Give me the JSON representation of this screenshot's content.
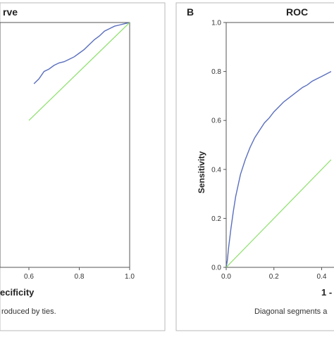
{
  "panels": [
    {
      "title": "rve",
      "xlabel": "ecificity",
      "footnote": "roduced by ties."
    },
    {
      "letter": "B",
      "title": "ROC",
      "xlabel": "1 -",
      "ylabel": "Sensitivity",
      "footnote": "Diagonal segments a"
    }
  ],
  "chart_data": [
    {
      "type": "line",
      "title": "rve",
      "xlabel": "ecificity",
      "ylabel": "",
      "x_ticks": [
        "0.6",
        "0.8",
        "1.0"
      ],
      "xlim": [
        0.6,
        1.0
      ],
      "ylim": [
        0.0,
        1.0
      ],
      "grid": false,
      "series": [
        {
          "color": "#5a6fbe",
          "x": [
            0.62,
            0.64,
            0.66,
            0.68,
            0.7,
            0.72,
            0.74,
            0.76,
            0.78,
            0.8,
            0.82,
            0.84,
            0.86,
            0.88,
            0.9,
            0.92,
            0.94,
            0.96,
            0.98,
            1.0
          ],
          "y": [
            0.75,
            0.77,
            0.8,
            0.81,
            0.825,
            0.835,
            0.84,
            0.85,
            0.86,
            0.875,
            0.89,
            0.91,
            0.93,
            0.945,
            0.965,
            0.975,
            0.985,
            0.99,
            0.995,
            1.0
          ]
        },
        {
          "color": "#8ce06a",
          "x": [
            0.6,
            1.0
          ],
          "y": [
            0.6,
            1.0
          ]
        }
      ]
    },
    {
      "type": "line",
      "title": "ROC",
      "xlabel": "1 -",
      "ylabel": "Sensitivity",
      "x_ticks": [
        "0.0",
        "0.2",
        "0.4"
      ],
      "y_ticks": [
        "0.0",
        "0.2",
        "0.4",
        "0.6",
        "0.8",
        "1.0"
      ],
      "xlim": [
        0.0,
        0.44
      ],
      "ylim": [
        0.0,
        1.0
      ],
      "grid": false,
      "series": [
        {
          "color": "#5a6fbe",
          "x": [
            0.0,
            0.005,
            0.01,
            0.02,
            0.03,
            0.04,
            0.06,
            0.08,
            0.1,
            0.12,
            0.14,
            0.16,
            0.18,
            0.2,
            0.22,
            0.24,
            0.26,
            0.28,
            0.3,
            0.32,
            0.34,
            0.36,
            0.38,
            0.4,
            0.42,
            0.44
          ],
          "y": [
            0.0,
            0.03,
            0.08,
            0.16,
            0.23,
            0.29,
            0.38,
            0.44,
            0.49,
            0.53,
            0.56,
            0.59,
            0.61,
            0.635,
            0.655,
            0.675,
            0.69,
            0.705,
            0.72,
            0.735,
            0.745,
            0.76,
            0.77,
            0.78,
            0.79,
            0.8
          ]
        },
        {
          "color": "#8ce06a",
          "x": [
            0.0,
            0.44
          ],
          "y": [
            0.0,
            0.44
          ]
        }
      ]
    }
  ]
}
